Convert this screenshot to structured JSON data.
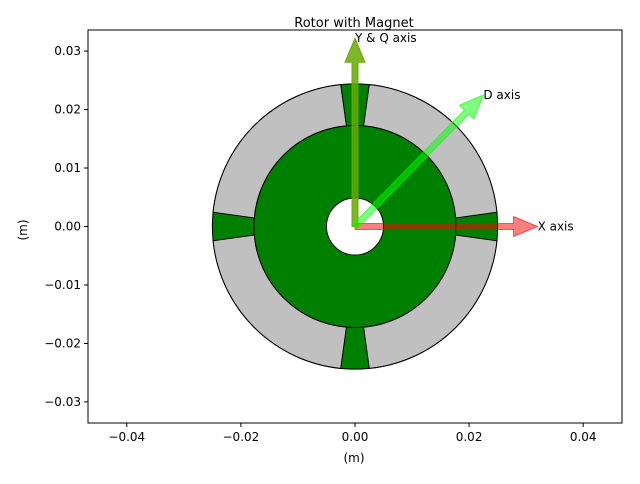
{
  "chart_data": {
    "type": "diagram",
    "title": "Rotor with Magnet",
    "xlabel": "(m)",
    "ylabel": "(m)",
    "xlim": [
      -0.0468,
      0.0468
    ],
    "ylim": [
      -0.0336,
      0.0336
    ],
    "xticks": [
      -0.04,
      -0.02,
      0.0,
      0.02,
      0.04
    ],
    "xtick_labels": [
      "−0.04",
      "−0.02",
      "0.00",
      "0.02",
      "0.04"
    ],
    "yticks": [
      -0.03,
      -0.02,
      -0.01,
      0.0,
      0.01,
      0.02,
      0.03
    ],
    "ytick_labels": [
      "−0.03",
      "−0.02",
      "−0.01",
      "0.00",
      "0.01",
      "0.02",
      "0.03"
    ],
    "grid": false,
    "rotor": {
      "outer_radius": 0.025,
      "magnet_inner_radius": 0.0177,
      "shaft_radius": 0.005,
      "pole_count": 4,
      "pole_half_width_outer": 0.0025,
      "pole_half_width_inner": 0.0015,
      "colors": {
        "iron": "#008000",
        "magnet": "#c0c0c0",
        "shaft": "#ffffff",
        "edge": "#000000"
      }
    },
    "arrows": [
      {
        "name": "X axis",
        "label": "X axis",
        "dx": 0.032,
        "dy": 0.0,
        "color": "#ff0000",
        "alpha": 0.5
      },
      {
        "name": "Y & Q axis",
        "label": "Y & Q axis",
        "dx": 0.0,
        "dy": 0.0322,
        "color": "#66aa00",
        "alpha": 0.85
      },
      {
        "name": "D axis",
        "label": "D axis",
        "dx": 0.0225,
        "dy": 0.0225,
        "color": "#00ff00",
        "alpha": 0.5
      }
    ]
  }
}
